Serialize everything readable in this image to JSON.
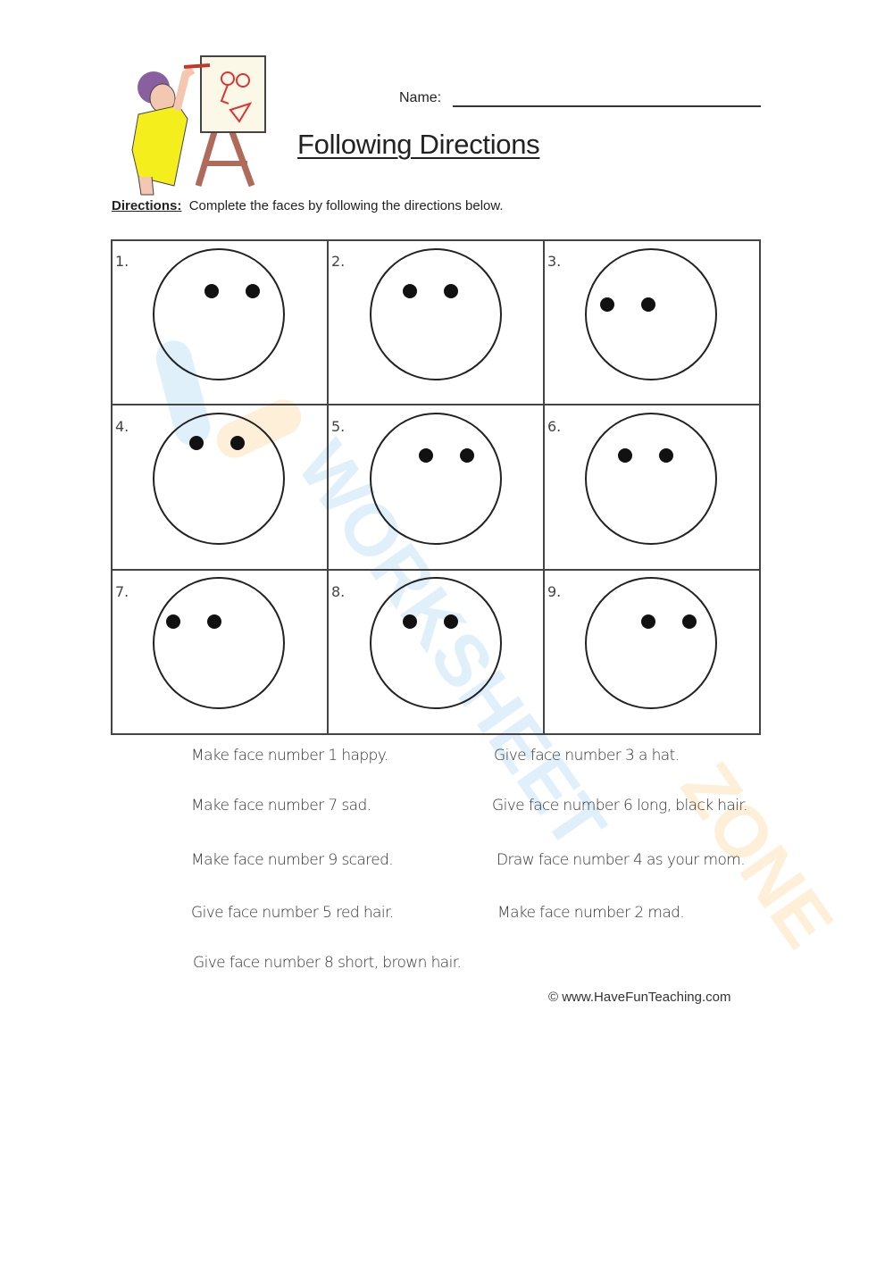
{
  "header": {
    "name_label": "Name:",
    "title": "Following Directions",
    "directions_label": "Directions:",
    "directions_text": "Complete the faces by following the directions below."
  },
  "faces": [
    "1.",
    "2.",
    "3.",
    "4.",
    "5.",
    "6.",
    "7.",
    "8.",
    "9."
  ],
  "instructions_left": [
    "Make face number 1 happy.",
    "Make face number 7 sad.",
    "Make face number 9 scared.",
    "Give face number 5 red hair.",
    "Give face number 8 short, brown hair."
  ],
  "instructions_right": [
    "Give face number 3 a hat.",
    "Give face number 6 long, black hair.",
    "Draw face number 4 as your mom.",
    "Make face number 2 mad."
  ],
  "footer": "© www.HaveFunTeaching.com",
  "watermark": "WORKSHEETZONE",
  "colors": {
    "watermark_blue": "#4aa8e8",
    "watermark_orange": "#f5a623"
  }
}
